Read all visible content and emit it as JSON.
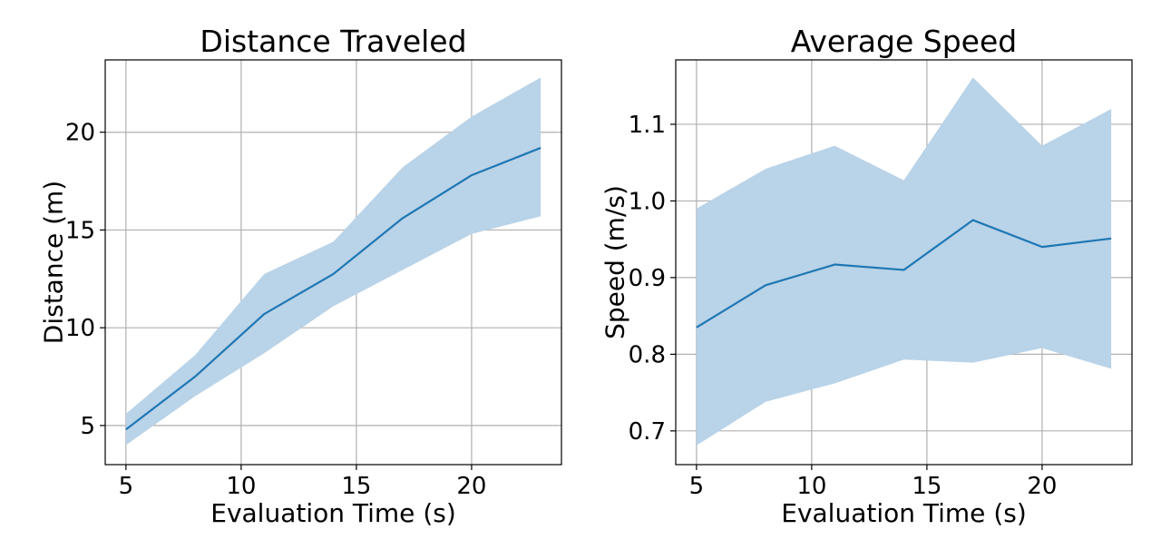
{
  "chart_data": [
    {
      "type": "line",
      "title": "Distance Traveled",
      "xlabel": "Evaluation Time (s)",
      "ylabel": "Distance (m)",
      "x": [
        5,
        8,
        11,
        14,
        17,
        20,
        23
      ],
      "series": [
        {
          "values": [
            4.8,
            7.5,
            10.7,
            12.75,
            15.6,
            17.8,
            19.2
          ],
          "band_upper": [
            5.6,
            8.6,
            12.75,
            14.4,
            18.2,
            20.8,
            22.8
          ],
          "band_lower": [
            4.0,
            6.5,
            8.7,
            11.1,
            12.95,
            14.8,
            15.7
          ],
          "color": "#1f77b4",
          "band_color": "#b9d3e8"
        }
      ],
      "xlim": [
        4.1,
        23.9
      ],
      "ylim": [
        3.0,
        23.7
      ],
      "xticks": [
        5,
        10,
        15,
        20
      ],
      "yticks": [
        5,
        10,
        15,
        20
      ],
      "xtick_labels": [
        "5",
        "10",
        "15",
        "20"
      ],
      "ytick_labels": [
        "5",
        "10",
        "15",
        "20"
      ],
      "grid": true
    },
    {
      "type": "line",
      "title": "Average Speed",
      "xlabel": "Evaluation Time (s)",
      "ylabel": "Speed (m/s)",
      "x": [
        5,
        8,
        11,
        14,
        17,
        20,
        23
      ],
      "series": [
        {
          "values": [
            0.835,
            0.89,
            0.917,
            0.91,
            0.975,
            0.94,
            0.951
          ],
          "band_upper": [
            0.99,
            1.042,
            1.072,
            1.027,
            1.161,
            1.072,
            1.12
          ],
          "band_lower": [
            0.681,
            0.738,
            0.762,
            0.793,
            0.789,
            0.808,
            0.781
          ],
          "color": "#1f77b4",
          "band_color": "#b9d3e8"
        }
      ],
      "xlim": [
        4.1,
        23.9
      ],
      "ylim": [
        0.656,
        1.184
      ],
      "xticks": [
        5,
        10,
        15,
        20
      ],
      "yticks": [
        0.7,
        0.8,
        0.9,
        1.0,
        1.1
      ],
      "xtick_labels": [
        "5",
        "10",
        "15",
        "20"
      ],
      "ytick_labels": [
        "0.7",
        "0.8",
        "0.9",
        "1.0",
        "1.1"
      ],
      "grid": true
    }
  ]
}
